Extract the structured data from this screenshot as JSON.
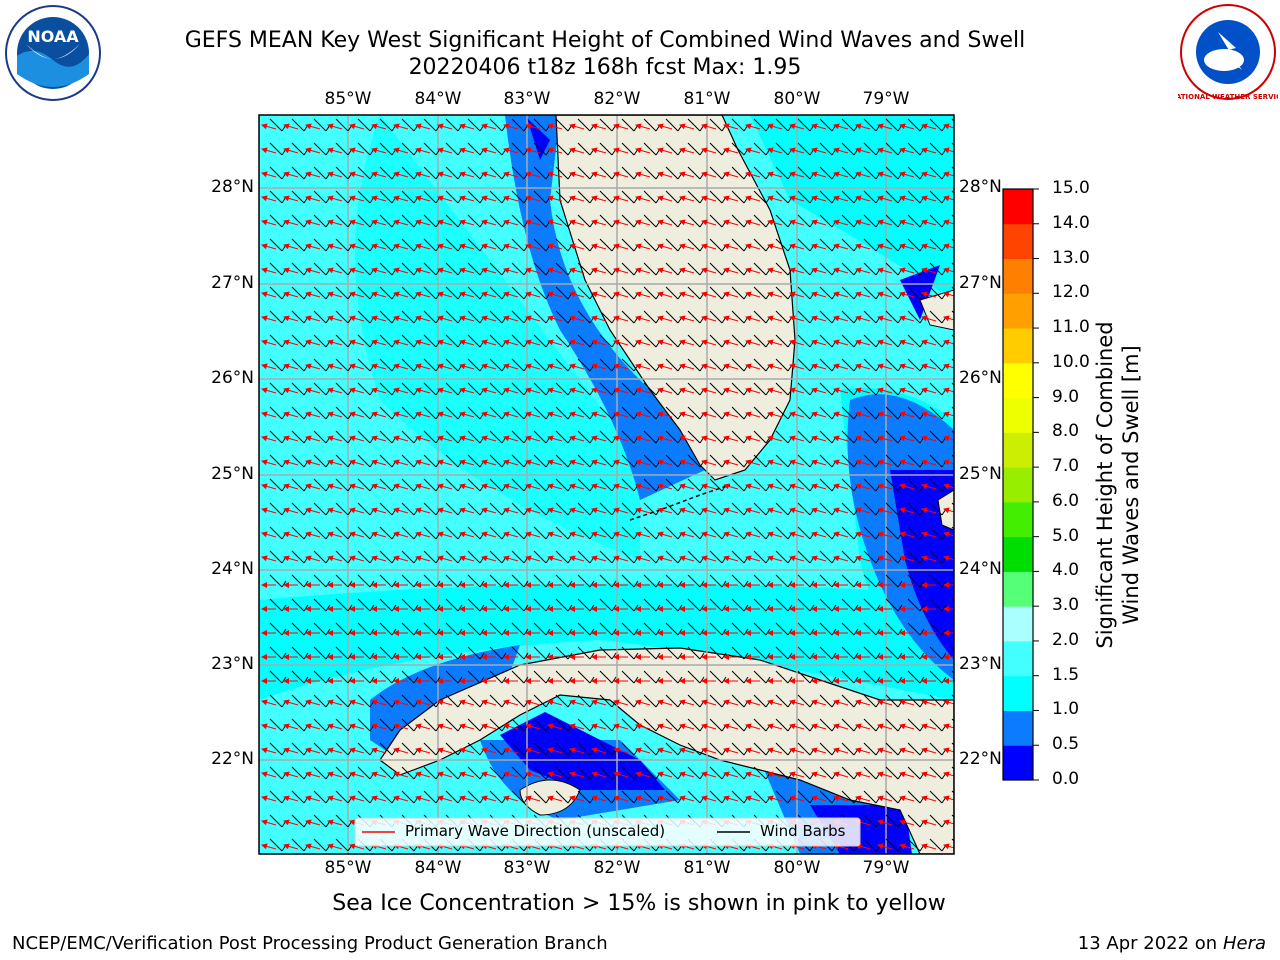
{
  "title": {
    "line1": "GEFS MEAN Key West Significant Height of Combined Wind Waves and Swell",
    "line2": "20220406 t18z 168h fcst   Max: 1.95"
  },
  "logos": {
    "left": {
      "text": "NOAA",
      "icon": "noaa-logo-icon"
    },
    "right": {
      "text": "NATIONAL WEATHER SERVICE",
      "icon": "nws-logo-icon"
    }
  },
  "axes": {
    "lon_labels": [
      "85°W",
      "84°W",
      "83°W",
      "82°W",
      "81°W",
      "80°W",
      "79°W"
    ],
    "lat_labels": [
      "28°N",
      "27°N",
      "26°N",
      "25°N",
      "24°N",
      "23°N",
      "22°N"
    ]
  },
  "legend": {
    "wave_label": "Primary Wave Direction (unscaled)",
    "barb_label": "Wind Barbs",
    "wave_color": "#ff0000",
    "barb_color": "#000000"
  },
  "colorbar": {
    "label_line1": "Significant Height of Combined",
    "label_line2": "Wind Waves and Swell [m]",
    "ticks": [
      "0.0",
      "0.5",
      "1.0",
      "1.5",
      "2.0",
      "3.0",
      "4.0",
      "5.0",
      "6.0",
      "7.0",
      "8.0",
      "9.0",
      "10.0",
      "11.0",
      "12.0",
      "13.0",
      "14.0",
      "15.0"
    ],
    "colors": [
      "#0000ff",
      "#0b7bff",
      "#00ffff",
      "#44ffff",
      "#aaffff",
      "#55ff77",
      "#00dd00",
      "#44ee00",
      "#99ee00",
      "#ccee00",
      "#eeff00",
      "#ffff00",
      "#ffcc00",
      "#ffa000",
      "#ff7f00",
      "#ff4400",
      "#ff0000"
    ]
  },
  "map_colors": {
    "land": "#efedde",
    "sea_low": "#0b7bff",
    "sea_mid": "#00ffff",
    "sea_high": "#44ffff",
    "sea_lowest": "#0000ff",
    "grid": "#aaaaaa"
  },
  "caption": "Sea Ice Concentration > 15% is shown in pink to yellow",
  "footer": {
    "left": "NCEP/EMC/Verification Post Processing Product Generation Branch",
    "date": "13 Apr 2022 on ",
    "host": "Hera"
  }
}
